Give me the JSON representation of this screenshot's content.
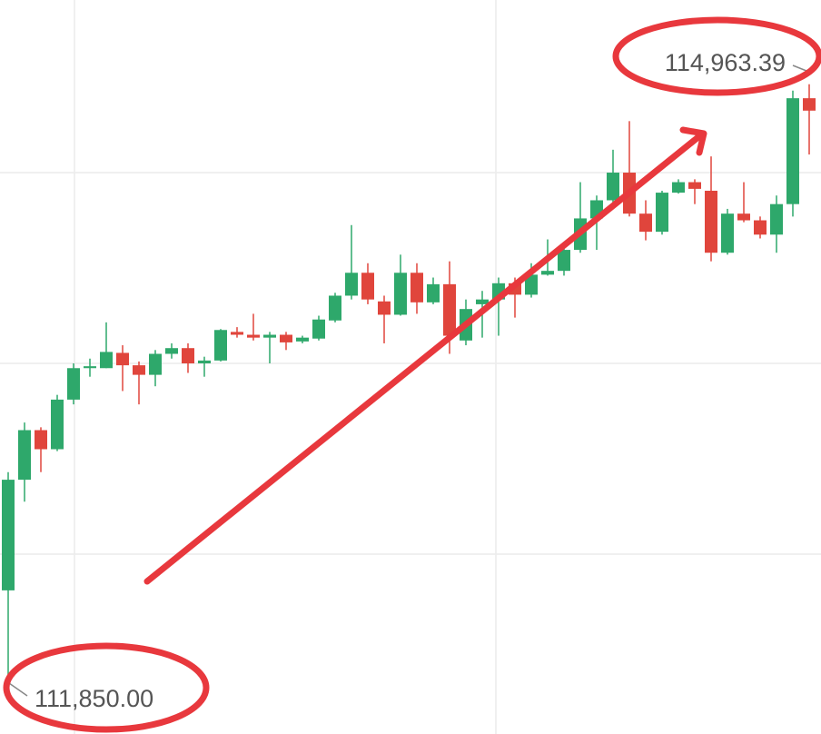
{
  "chart_data": {
    "type": "candlestick",
    "open": [
      112310,
      112890,
      113150,
      113050,
      113310,
      113475,
      113475,
      113555,
      113490,
      113440,
      113550,
      113580,
      113500,
      113515,
      113665,
      113650,
      113635,
      113650,
      113615,
      113630,
      113725,
      113855,
      113975,
      113825,
      113755,
      113975,
      113820,
      113915,
      113620,
      113810,
      113835,
      113920,
      113860,
      113965,
      113985,
      114095,
      114260,
      114355,
      114500,
      114285,
      114190,
      114395,
      114450,
      114405,
      114080,
      114285,
      114250,
      114175,
      114335,
      114890
    ],
    "high": [
      112930,
      113190,
      113165,
      113335,
      113500,
      113525,
      113715,
      113595,
      113510,
      113570,
      113605,
      113605,
      113535,
      113680,
      113690,
      113760,
      113665,
      113665,
      113645,
      113750,
      113870,
      114225,
      114025,
      113855,
      114070,
      114025,
      113950,
      114035,
      113835,
      113880,
      113950,
      113950,
      114025,
      114150,
      114110,
      114450,
      114380,
      114620,
      114770,
      114355,
      114405,
      114465,
      114465,
      114585,
      114310,
      114450,
      114270,
      114380,
      114930,
      114963.39
    ],
    "low": [
      111850,
      112775,
      112930,
      113040,
      113285,
      113430,
      113475,
      113355,
      113285,
      113380,
      113525,
      113450,
      113430,
      113510,
      113635,
      113620,
      113500,
      113570,
      113605,
      113620,
      113715,
      113835,
      113810,
      113605,
      113750,
      113760,
      113810,
      113550,
      113595,
      113635,
      113645,
      113740,
      113845,
      113960,
      113960,
      114080,
      114095,
      114335,
      114270,
      114145,
      114175,
      114390,
      114335,
      114035,
      114070,
      114240,
      114155,
      114080,
      114270,
      114595
    ],
    "close": [
      112890,
      113150,
      113050,
      113310,
      113475,
      113485,
      113560,
      113490,
      113440,
      113550,
      113580,
      113500,
      113515,
      113675,
      113650,
      113635,
      113650,
      113610,
      113635,
      113730,
      113855,
      113975,
      113835,
      113755,
      113975,
      113820,
      113915,
      113645,
      113785,
      113835,
      113920,
      113860,
      113965,
      113985,
      114095,
      114260,
      114355,
      114500,
      114285,
      114190,
      114395,
      114450,
      114415,
      114080,
      114285,
      114250,
      114175,
      114335,
      114890,
      114825
    ],
    "up_color": "#2ea86b",
    "down_color": "#e0453c",
    "ylim": [
      111557,
      115405
    ],
    "yticks": [
      112500,
      113500,
      114500
    ],
    "grid": true,
    "max_label": "114,963.39",
    "min_label": "111,850.00"
  }
}
